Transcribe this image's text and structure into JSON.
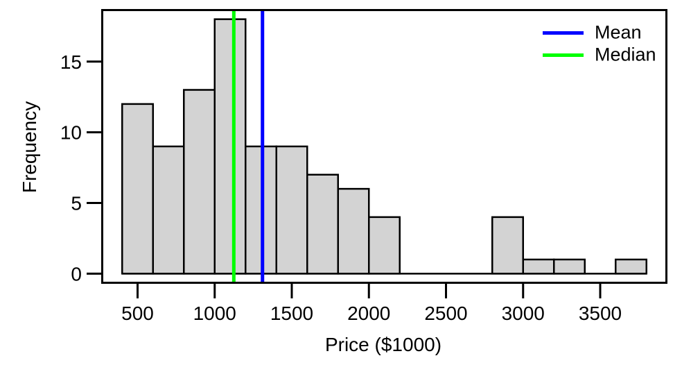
{
  "chart_data": {
    "type": "bar",
    "chart_kind": "histogram",
    "title": "",
    "xlabel": "Price ($1000)",
    "ylabel": "Frequency",
    "bin_edges": [
      400,
      600,
      800,
      1000,
      1200,
      1400,
      1600,
      1800,
      2000,
      2200,
      2400,
      2600,
      2800,
      3000,
      3200,
      3400,
      3600,
      3800
    ],
    "counts": [
      12,
      9,
      13,
      18,
      9,
      9,
      7,
      6,
      4,
      0,
      0,
      0,
      4,
      1,
      1,
      0,
      1
    ],
    "x_ticks": [
      500,
      1000,
      1500,
      2000,
      2500,
      3000,
      3500
    ],
    "y_ticks": [
      0,
      5,
      10,
      15
    ],
    "xlim": [
      264,
      3936
    ],
    "ylim": [
      -0.72,
      18.72
    ],
    "mean_line_x": 1310,
    "median_line_x": 1124,
    "legend": {
      "position": "top-right",
      "entries": [
        {
          "label": "Mean",
          "color": "#0000ff"
        },
        {
          "label": "Median",
          "color": "#00ff00"
        }
      ]
    },
    "colors": {
      "bar_fill": "#d3d3d3",
      "bar_border": "#000000",
      "mean_line": "#0000ff",
      "median_line": "#00ff00",
      "frame": "#000000",
      "text": "#000000"
    },
    "grid": false
  }
}
